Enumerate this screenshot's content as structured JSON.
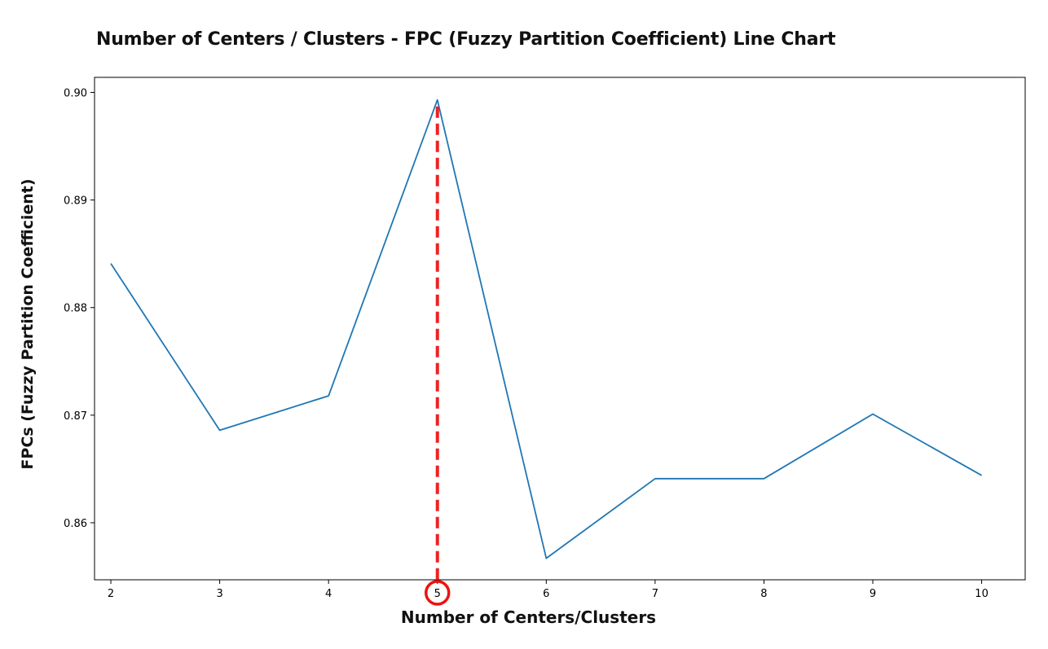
{
  "chart_data": {
    "type": "line",
    "title": "Number of Centers / Clusters - FPC (Fuzzy Partition Coefficient) Line Chart",
    "xlabel": "Number of Centers/Clusters",
    "ylabel": "FPCs (Fuzzy Partition Coefficient)",
    "x": [
      2,
      3,
      4,
      5,
      6,
      7,
      8,
      9,
      10
    ],
    "series": [
      {
        "values": [
          0.8841,
          0.8686,
          0.8718,
          0.8993,
          0.8567,
          0.8641,
          0.8641,
          0.8701,
          0.8644
        ],
        "color": "#1f77b4"
      }
    ],
    "xlim": [
      1.85,
      10.4
    ],
    "ylim": [
      0.8547,
      0.9014
    ],
    "x_ticks": [
      "2",
      "3",
      "4",
      "5",
      "6",
      "7",
      "8",
      "9",
      "10"
    ],
    "y_ticks": [
      "0.86",
      "0.87",
      "0.88",
      "0.89",
      "0.90"
    ],
    "y_tick_values": [
      0.86,
      0.87,
      0.88,
      0.89,
      0.9
    ],
    "grid": false,
    "annotations": [
      {
        "type": "dashed-vertical-line",
        "x": 5,
        "color": "#ee2222"
      },
      {
        "type": "circle-highlight",
        "x_tick": "5",
        "color": "#ee1111"
      }
    ]
  }
}
